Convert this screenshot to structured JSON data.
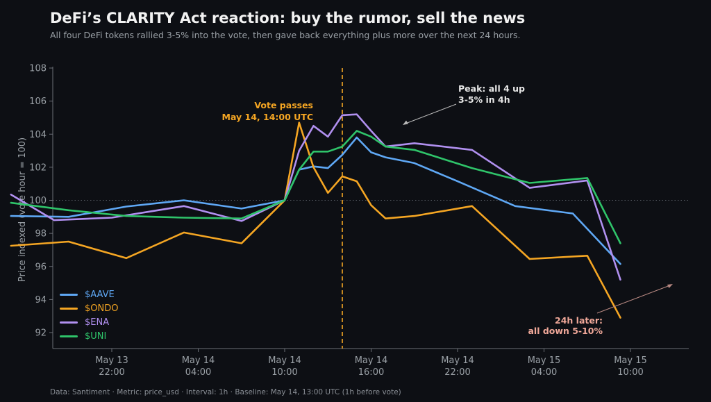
{
  "title": "DeFi’s CLARITY Act reaction: buy the rumor, sell the news",
  "subtitle": "All four DeFi tokens rallied 3-5% into the vote, then gave back everything plus more over the next 24 hours.",
  "footer": "Data: Santiment  ·  Metric: price_usd  ·  Interval: 1h  ·  Baseline: May 14, 13:00 UTC (1h before vote)",
  "colors": {
    "background": "#0d0f14",
    "axis": "#6b6f76",
    "text_muted": "#9aa0a6",
    "vote_line": "#f5a623",
    "annotation_peak": "#e6e6e6",
    "annotation_later": "#f0a899",
    "baseline": "#555a62"
  },
  "chart_data": {
    "type": "line",
    "ylabel": "Price indexed (vote hour = 100)",
    "xlabel": "",
    "ylim": [
      91,
      108
    ],
    "xlim_hours_from_may13_1500": [
      0,
      36.8
    ],
    "y_ticks": [
      92,
      94,
      96,
      98,
      100,
      102,
      104,
      106,
      108
    ],
    "x_ticks": [
      {
        "hour": 7,
        "line1": "May 13",
        "line2": "22:00"
      },
      {
        "hour": 13,
        "line1": "May 14",
        "line2": "04:00"
      },
      {
        "hour": 19,
        "line1": "May 14",
        "line2": "10:00"
      },
      {
        "hour": 25,
        "line1": "May 14",
        "line2": "16:00"
      },
      {
        "hour": 31,
        "line1": "May 14",
        "line2": "22:00"
      },
      {
        "hour": 37,
        "line1": "May 15",
        "line2": "04:00"
      },
      {
        "hour": 43,
        "line1": "May 15",
        "line2": "10:00"
      }
    ],
    "baseline_y": 100,
    "vote_hour": 23,
    "legend_position": "lower-left",
    "series": [
      {
        "name": "$AAVE",
        "color": "#5fa8f5",
        "points": [
          [
            0,
            99.05
          ],
          [
            4,
            99.0
          ],
          [
            8,
            99.62
          ],
          [
            12,
            100.0
          ],
          [
            16,
            99.5
          ],
          [
            19,
            100.0
          ],
          [
            20,
            101.85
          ],
          [
            21,
            102.05
          ],
          [
            22,
            101.95
          ],
          [
            23,
            102.75
          ],
          [
            24,
            103.8
          ],
          [
            25,
            102.9
          ],
          [
            26,
            102.6
          ],
          [
            28,
            102.25
          ],
          [
            31,
            101.15
          ],
          [
            35,
            99.65
          ],
          [
            39,
            99.2
          ],
          [
            42.3,
            96.15
          ]
        ]
      },
      {
        "name": "$ONDO",
        "color": "#f5a623",
        "points": [
          [
            0,
            97.25
          ],
          [
            4,
            97.5
          ],
          [
            8,
            96.5
          ],
          [
            12,
            98.05
          ],
          [
            16,
            97.4
          ],
          [
            19,
            100.0
          ],
          [
            20,
            104.7
          ],
          [
            21,
            102.0
          ],
          [
            22,
            100.45
          ],
          [
            23,
            101.45
          ],
          [
            24,
            101.15
          ],
          [
            25,
            99.7
          ],
          [
            26,
            98.9
          ],
          [
            28,
            99.05
          ],
          [
            32,
            99.65
          ],
          [
            36,
            96.45
          ],
          [
            40,
            96.65
          ],
          [
            42.3,
            92.9
          ]
        ]
      },
      {
        "name": "$ENA",
        "color": "#b190f0",
        "points": [
          [
            0,
            100.35
          ],
          [
            3,
            98.8
          ],
          [
            7,
            98.95
          ],
          [
            12,
            99.65
          ],
          [
            16,
            98.75
          ],
          [
            19,
            100.0
          ],
          [
            20,
            103.0
          ],
          [
            21,
            104.5
          ],
          [
            22,
            103.85
          ],
          [
            23,
            105.15
          ],
          [
            24,
            105.2
          ],
          [
            25,
            104.2
          ],
          [
            26,
            103.25
          ],
          [
            28,
            103.45
          ],
          [
            32,
            103.05
          ],
          [
            36,
            100.75
          ],
          [
            40,
            101.2
          ],
          [
            42.3,
            95.2
          ]
        ]
      },
      {
        "name": "$UNI",
        "color": "#2fc46a",
        "points": [
          [
            0,
            99.85
          ],
          [
            4,
            99.4
          ],
          [
            8,
            99.05
          ],
          [
            12,
            98.95
          ],
          [
            16,
            98.9
          ],
          [
            19,
            100.0
          ],
          [
            20,
            101.85
          ],
          [
            21,
            102.95
          ],
          [
            22,
            102.95
          ],
          [
            23,
            103.25
          ],
          [
            24,
            104.2
          ],
          [
            25,
            103.85
          ],
          [
            26,
            103.25
          ],
          [
            28,
            103.05
          ],
          [
            32,
            101.95
          ],
          [
            36,
            101.05
          ],
          [
            40,
            101.35
          ],
          [
            42.3,
            97.4
          ]
        ]
      }
    ],
    "annotations": [
      {
        "id": "vote",
        "text_lines": [
          "Vote passes",
          "May 14, 14:00 UTC"
        ]
      },
      {
        "id": "peak",
        "text_lines": [
          "Peak: all 4 up",
          "3-5% in 4h"
        ],
        "arrow_to": [
          24,
          104.5
        ]
      },
      {
        "id": "later",
        "text_lines": [
          "24h later:",
          "all down 5-10%"
        ],
        "arrow_to": [
          42.3,
          95.05
        ]
      }
    ]
  }
}
